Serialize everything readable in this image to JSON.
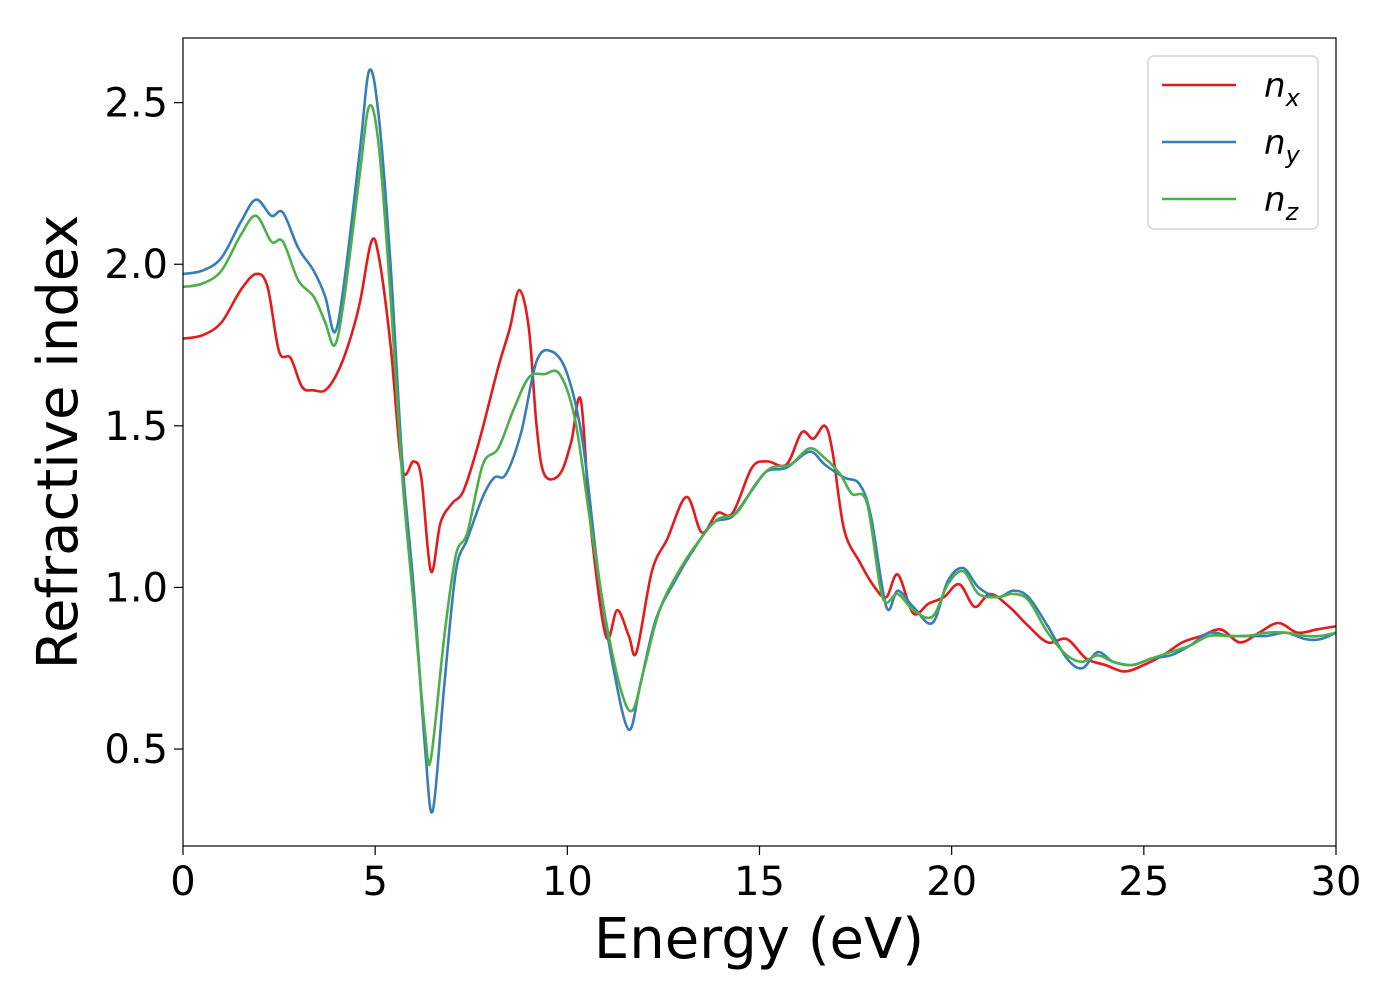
{
  "chart_data": {
    "type": "line",
    "title": "",
    "xlabel": "Energy (eV)",
    "ylabel": "Refractive index",
    "xlim": [
      0,
      30
    ],
    "ylim": [
      0.2,
      2.7
    ],
    "xticks": [
      0,
      5,
      10,
      15,
      20,
      25,
      30
    ],
    "yticks": [
      0.5,
      1.0,
      1.5,
      2.0,
      2.5
    ],
    "xtick_labels": [
      "0",
      "5",
      "10",
      "15",
      "20",
      "25",
      "30"
    ],
    "ytick_labels": [
      "0.5",
      "1.0",
      "1.5",
      "2.0",
      "2.5"
    ],
    "grid": false,
    "legend_position": "top-right",
    "series": [
      {
        "name": "n",
        "subscript": "x",
        "color": "#e41a1c",
        "points": [
          [
            0,
            1.77
          ],
          [
            0.5,
            1.78
          ],
          [
            1.0,
            1.82
          ],
          [
            1.5,
            1.92
          ],
          [
            1.9,
            1.97
          ],
          [
            2.2,
            1.93
          ],
          [
            2.5,
            1.73
          ],
          [
            2.8,
            1.71
          ],
          [
            3.1,
            1.62
          ],
          [
            3.4,
            1.61
          ],
          [
            3.7,
            1.61
          ],
          [
            4.0,
            1.66
          ],
          [
            4.3,
            1.75
          ],
          [
            4.6,
            1.88
          ],
          [
            4.9,
            2.07
          ],
          [
            5.1,
            2.02
          ],
          [
            5.4,
            1.75
          ],
          [
            5.7,
            1.37
          ],
          [
            6.0,
            1.39
          ],
          [
            6.2,
            1.34
          ],
          [
            6.45,
            1.05
          ],
          [
            6.7,
            1.2
          ],
          [
            7.0,
            1.26
          ],
          [
            7.3,
            1.3
          ],
          [
            7.7,
            1.45
          ],
          [
            8.2,
            1.68
          ],
          [
            8.5,
            1.8
          ],
          [
            8.75,
            1.92
          ],
          [
            9.0,
            1.8
          ],
          [
            9.2,
            1.5
          ],
          [
            9.4,
            1.35
          ],
          [
            9.8,
            1.35
          ],
          [
            10.1,
            1.45
          ],
          [
            10.35,
            1.58
          ],
          [
            10.6,
            1.2
          ],
          [
            11.0,
            0.85
          ],
          [
            11.3,
            0.93
          ],
          [
            11.6,
            0.85
          ],
          [
            11.8,
            0.8
          ],
          [
            12.2,
            1.05
          ],
          [
            12.6,
            1.15
          ],
          [
            13.1,
            1.28
          ],
          [
            13.5,
            1.17
          ],
          [
            13.9,
            1.23
          ],
          [
            14.3,
            1.23
          ],
          [
            14.8,
            1.37
          ],
          [
            15.2,
            1.39
          ],
          [
            15.7,
            1.38
          ],
          [
            16.1,
            1.48
          ],
          [
            16.4,
            1.46
          ],
          [
            16.7,
            1.5
          ],
          [
            16.9,
            1.42
          ],
          [
            17.2,
            1.18
          ],
          [
            17.6,
            1.08
          ],
          [
            18.0,
            1.0
          ],
          [
            18.3,
            0.97
          ],
          [
            18.6,
            1.04
          ],
          [
            19.0,
            0.92
          ],
          [
            19.4,
            0.95
          ],
          [
            19.8,
            0.97
          ],
          [
            20.2,
            1.01
          ],
          [
            20.6,
            0.94
          ],
          [
            21.0,
            0.98
          ],
          [
            21.5,
            0.94
          ],
          [
            22.0,
            0.88
          ],
          [
            22.5,
            0.83
          ],
          [
            23.0,
            0.84
          ],
          [
            23.5,
            0.78
          ],
          [
            24.0,
            0.76
          ],
          [
            24.5,
            0.74
          ],
          [
            25.0,
            0.76
          ],
          [
            25.5,
            0.79
          ],
          [
            26.0,
            0.83
          ],
          [
            26.5,
            0.85
          ],
          [
            27.0,
            0.87
          ],
          [
            27.5,
            0.83
          ],
          [
            28.0,
            0.86
          ],
          [
            28.5,
            0.89
          ],
          [
            29.0,
            0.86
          ],
          [
            29.5,
            0.87
          ],
          [
            30.0,
            0.88
          ]
        ]
      },
      {
        "name": "n",
        "subscript": "y",
        "color": "#377eb8",
        "points": [
          [
            0,
            1.97
          ],
          [
            0.5,
            1.98
          ],
          [
            1.0,
            2.02
          ],
          [
            1.5,
            2.13
          ],
          [
            1.9,
            2.2
          ],
          [
            2.3,
            2.15
          ],
          [
            2.6,
            2.16
          ],
          [
            3.0,
            2.05
          ],
          [
            3.4,
            1.98
          ],
          [
            3.7,
            1.9
          ],
          [
            3.95,
            1.79
          ],
          [
            4.2,
            1.95
          ],
          [
            4.6,
            2.35
          ],
          [
            4.85,
            2.6
          ],
          [
            5.1,
            2.45
          ],
          [
            5.4,
            2.0
          ],
          [
            5.7,
            1.4
          ],
          [
            6.0,
            1.0
          ],
          [
            6.3,
            0.5
          ],
          [
            6.5,
            0.31
          ],
          [
            6.8,
            0.7
          ],
          [
            7.1,
            1.05
          ],
          [
            7.4,
            1.15
          ],
          [
            7.8,
            1.28
          ],
          [
            8.1,
            1.34
          ],
          [
            8.4,
            1.35
          ],
          [
            8.8,
            1.48
          ],
          [
            9.2,
            1.7
          ],
          [
            9.6,
            1.73
          ],
          [
            10.0,
            1.66
          ],
          [
            10.4,
            1.45
          ],
          [
            10.8,
            1.05
          ],
          [
            11.2,
            0.75
          ],
          [
            11.6,
            0.56
          ],
          [
            11.9,
            0.7
          ],
          [
            12.3,
            0.9
          ],
          [
            12.8,
            1.02
          ],
          [
            13.3,
            1.12
          ],
          [
            13.8,
            1.2
          ],
          [
            14.3,
            1.22
          ],
          [
            14.8,
            1.3
          ],
          [
            15.2,
            1.36
          ],
          [
            15.7,
            1.37
          ],
          [
            16.3,
            1.42
          ],
          [
            16.7,
            1.38
          ],
          [
            17.2,
            1.34
          ],
          [
            17.6,
            1.32
          ],
          [
            17.9,
            1.22
          ],
          [
            18.3,
            0.94
          ],
          [
            18.6,
            0.99
          ],
          [
            19.0,
            0.94
          ],
          [
            19.5,
            0.89
          ],
          [
            19.9,
            1.02
          ],
          [
            20.3,
            1.06
          ],
          [
            20.7,
            1.0
          ],
          [
            21.2,
            0.97
          ],
          [
            21.6,
            0.99
          ],
          [
            22.0,
            0.97
          ],
          [
            22.5,
            0.88
          ],
          [
            23.0,
            0.78
          ],
          [
            23.4,
            0.75
          ],
          [
            23.8,
            0.8
          ],
          [
            24.2,
            0.77
          ],
          [
            24.7,
            0.76
          ],
          [
            25.2,
            0.78
          ],
          [
            25.7,
            0.79
          ],
          [
            26.2,
            0.82
          ],
          [
            26.7,
            0.86
          ],
          [
            27.2,
            0.85
          ],
          [
            27.7,
            0.85
          ],
          [
            28.2,
            0.85
          ],
          [
            28.7,
            0.86
          ],
          [
            29.2,
            0.84
          ],
          [
            29.6,
            0.84
          ],
          [
            30.0,
            0.86
          ]
        ]
      },
      {
        "name": "n",
        "subscript": "z",
        "color": "#4daf4a",
        "points": [
          [
            0,
            1.93
          ],
          [
            0.5,
            1.94
          ],
          [
            1.0,
            1.98
          ],
          [
            1.5,
            2.09
          ],
          [
            1.9,
            2.15
          ],
          [
            2.3,
            2.07
          ],
          [
            2.6,
            2.07
          ],
          [
            3.0,
            1.95
          ],
          [
            3.4,
            1.9
          ],
          [
            3.7,
            1.82
          ],
          [
            3.95,
            1.75
          ],
          [
            4.2,
            1.9
          ],
          [
            4.6,
            2.28
          ],
          [
            4.85,
            2.49
          ],
          [
            5.1,
            2.36
          ],
          [
            5.4,
            1.9
          ],
          [
            5.7,
            1.35
          ],
          [
            6.0,
            0.95
          ],
          [
            6.3,
            0.55
          ],
          [
            6.45,
            0.47
          ],
          [
            6.8,
            0.85
          ],
          [
            7.1,
            1.1
          ],
          [
            7.4,
            1.17
          ],
          [
            7.8,
            1.38
          ],
          [
            8.2,
            1.43
          ],
          [
            8.6,
            1.55
          ],
          [
            9.0,
            1.65
          ],
          [
            9.4,
            1.66
          ],
          [
            9.8,
            1.66
          ],
          [
            10.2,
            1.52
          ],
          [
            10.6,
            1.2
          ],
          [
            11.0,
            0.9
          ],
          [
            11.4,
            0.68
          ],
          [
            11.7,
            0.62
          ],
          [
            12.0,
            0.75
          ],
          [
            12.4,
            0.93
          ],
          [
            12.9,
            1.05
          ],
          [
            13.4,
            1.14
          ],
          [
            13.9,
            1.21
          ],
          [
            14.4,
            1.23
          ],
          [
            14.9,
            1.32
          ],
          [
            15.3,
            1.37
          ],
          [
            15.8,
            1.38
          ],
          [
            16.3,
            1.43
          ],
          [
            16.7,
            1.4
          ],
          [
            17.1,
            1.35
          ],
          [
            17.4,
            1.29
          ],
          [
            17.8,
            1.26
          ],
          [
            18.2,
            0.97
          ],
          [
            18.6,
            0.98
          ],
          [
            19.0,
            0.93
          ],
          [
            19.5,
            0.91
          ],
          [
            19.9,
            1.01
          ],
          [
            20.3,
            1.05
          ],
          [
            20.7,
            0.98
          ],
          [
            21.2,
            0.97
          ],
          [
            21.6,
            0.98
          ],
          [
            22.0,
            0.96
          ],
          [
            22.5,
            0.86
          ],
          [
            23.0,
            0.79
          ],
          [
            23.4,
            0.77
          ],
          [
            23.8,
            0.79
          ],
          [
            24.2,
            0.77
          ],
          [
            24.7,
            0.76
          ],
          [
            25.2,
            0.78
          ],
          [
            25.7,
            0.8
          ],
          [
            26.2,
            0.82
          ],
          [
            26.7,
            0.85
          ],
          [
            27.2,
            0.85
          ],
          [
            27.7,
            0.85
          ],
          [
            28.2,
            0.86
          ],
          [
            28.7,
            0.86
          ],
          [
            29.2,
            0.85
          ],
          [
            29.6,
            0.85
          ],
          [
            30.0,
            0.86
          ]
        ]
      }
    ]
  }
}
